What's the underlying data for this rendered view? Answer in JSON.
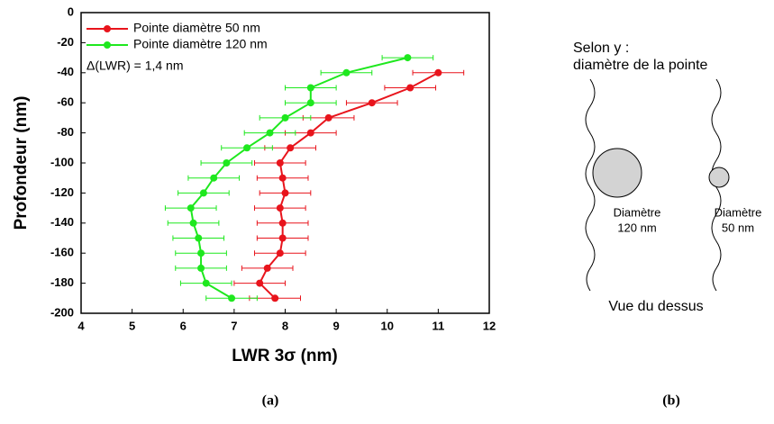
{
  "chart_data": {
    "type": "scatter",
    "xlabel": "LWR 3σ (nm)",
    "ylabel": "Profondeur (nm)",
    "xlim": [
      4,
      12
    ],
    "xticks": [
      4,
      5,
      6,
      7,
      8,
      9,
      10,
      11,
      12
    ],
    "ylim": [
      -200,
      0
    ],
    "yticks": [
      0,
      -20,
      -40,
      -60,
      -80,
      -100,
      -120,
      -140,
      -160,
      -180,
      -200
    ],
    "legend": "upper left",
    "annotation": "Δ(LWR) = 1,4 nm",
    "series": [
      {
        "name": "Pointe diamètre 50 nm",
        "color": "#e8141c",
        "x": [
          11.0,
          10.45,
          9.7,
          8.85,
          8.5,
          8.1,
          7.9,
          7.95,
          8.0,
          7.9,
          7.95,
          7.95,
          7.9,
          7.65,
          7.5,
          7.8
        ],
        "y": [
          -40,
          -50,
          -60,
          -70,
          -80,
          -90,
          -100,
          -110,
          -120,
          -130,
          -140,
          -150,
          -160,
          -170,
          -180,
          -190
        ],
        "xerr": [
          0.5,
          0.5,
          0.5,
          0.5,
          0.5,
          0.5,
          0.5,
          0.5,
          0.5,
          0.5,
          0.5,
          0.5,
          0.5,
          0.5,
          0.5,
          0.5
        ]
      },
      {
        "name": "Pointe diamètre 120 nm",
        "color": "#1ee81e",
        "x": [
          10.4,
          9.2,
          8.5,
          8.5,
          8.0,
          7.7,
          7.25,
          6.85,
          6.6,
          6.4,
          6.15,
          6.2,
          6.3,
          6.35,
          6.35,
          6.45,
          6.95
        ],
        "y": [
          -30,
          -40,
          -50,
          -60,
          -70,
          -80,
          -90,
          -100,
          -110,
          -120,
          -130,
          -140,
          -150,
          -160,
          -170,
          -180,
          -190
        ],
        "xerr": [
          0.5,
          0.5,
          0.5,
          0.5,
          0.5,
          0.5,
          0.5,
          0.5,
          0.5,
          0.5,
          0.5,
          0.5,
          0.5,
          0.5,
          0.5,
          0.5,
          0.5
        ]
      }
    ]
  },
  "captions": [
    "(a)",
    "(b)"
  ],
  "diagram": {
    "direction_label": "Selon y :",
    "direction_text": "diamètre de la pointe",
    "large_tip": [
      "Diamètre",
      "120 nm"
    ],
    "small_tip": [
      "Diamètre",
      "50 nm"
    ],
    "view": "Vue du dessus"
  }
}
